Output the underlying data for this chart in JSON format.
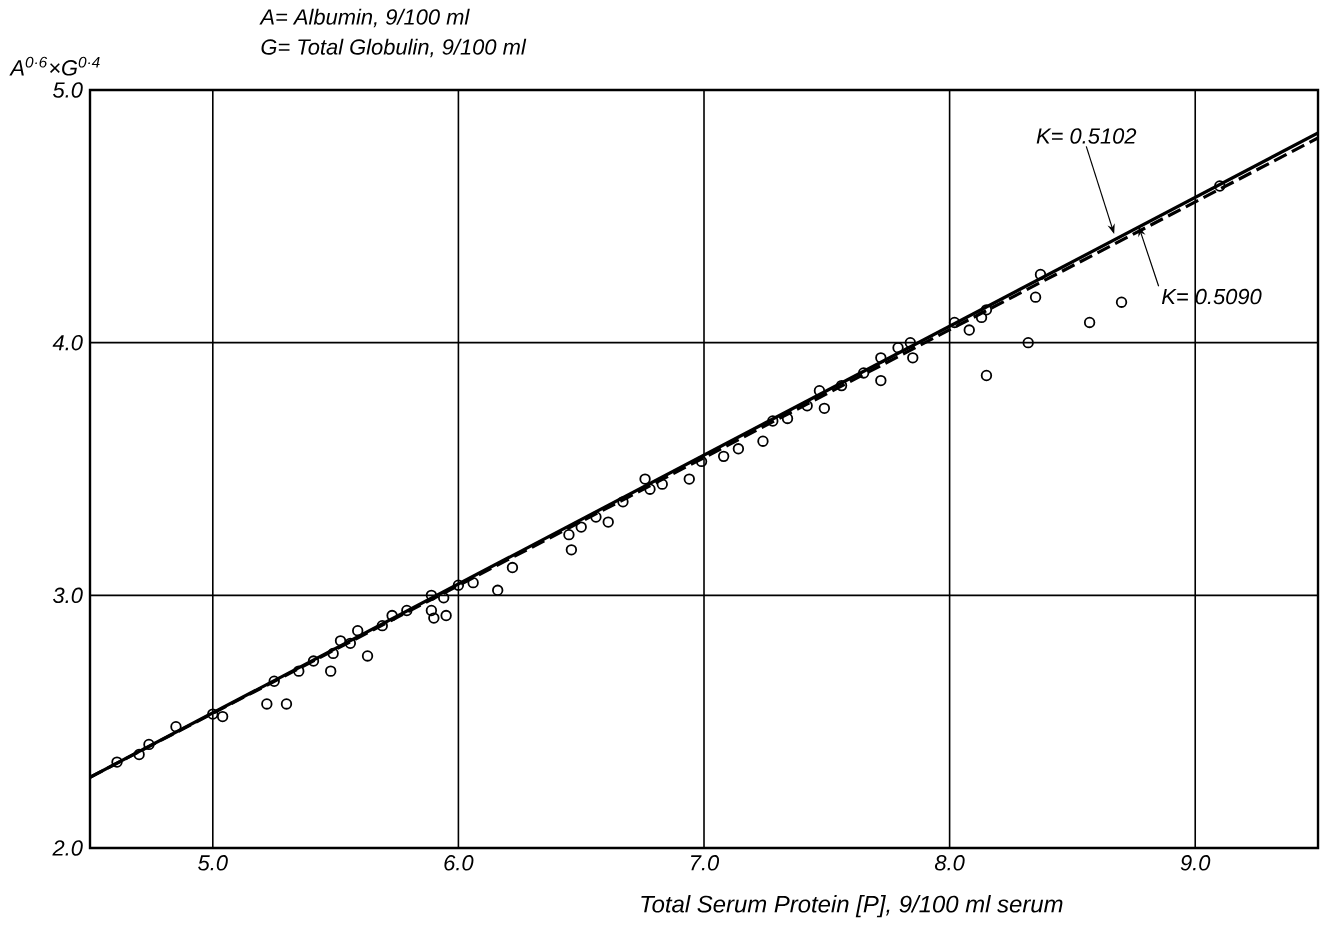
{
  "chart_data": {
    "type": "scatter",
    "xlabel": "Total  Serum Protein [P], 9/100 ml  serum",
    "ylabel": "A$^{0·6}$×G$^{0·4}$",
    "xlim": [
      4.5,
      9.5
    ],
    "ylim": [
      2.0,
      5.0
    ],
    "xticks": [
      {
        "value": 5,
        "label": "5.0"
      },
      {
        "value": 6,
        "label": "6.0"
      },
      {
        "value": 7,
        "label": "7.0"
      },
      {
        "value": 8,
        "label": "8.0"
      },
      {
        "value": 9,
        "label": "9.0"
      }
    ],
    "yticks": [
      {
        "value": 2,
        "label": "2.0"
      },
      {
        "value": 3,
        "label": "3.0"
      },
      {
        "value": 4,
        "label": "4.0"
      },
      {
        "value": 5,
        "label": "5.0"
      }
    ],
    "grid": true,
    "series": [
      {
        "marker": "circle",
        "color": "#000000",
        "x": [
          4.61,
          4.7,
          4.74,
          4.85,
          5.0,
          5.04,
          5.22,
          5.3,
          5.25,
          5.35,
          5.41,
          5.48,
          5.49,
          5.52,
          5.56,
          5.59,
          5.63,
          5.69,
          5.73,
          5.79,
          5.89,
          5.89,
          5.9,
          5.95,
          5.94,
          6.0,
          6.06,
          6.16,
          6.22,
          6.46,
          6.45,
          6.5,
          6.61,
          6.56,
          6.67,
          6.76,
          6.78,
          6.83,
          6.94,
          6.99,
          7.08,
          7.14,
          7.24,
          7.28,
          7.34,
          7.42,
          7.49,
          7.47,
          7.56,
          7.65,
          7.72,
          7.72,
          7.79,
          7.85,
          7.84,
          8.02,
          8.08,
          8.15,
          8.13,
          8.15,
          8.32,
          8.35,
          8.37,
          8.57,
          8.7,
          9.1
        ],
        "values": [
          2.34,
          2.37,
          2.41,
          2.48,
          2.53,
          2.52,
          2.57,
          2.57,
          2.66,
          2.7,
          2.74,
          2.7,
          2.77,
          2.82,
          2.81,
          2.86,
          2.76,
          2.88,
          2.92,
          2.94,
          3.0,
          2.94,
          2.91,
          2.92,
          2.99,
          3.04,
          3.05,
          3.02,
          3.11,
          3.18,
          3.24,
          3.27,
          3.29,
          3.31,
          3.37,
          3.46,
          3.42,
          3.44,
          3.46,
          3.53,
          3.55,
          3.58,
          3.61,
          3.69,
          3.7,
          3.75,
          3.74,
          3.81,
          3.83,
          3.88,
          3.85,
          3.94,
          3.98,
          3.94,
          4.0,
          4.08,
          4.05,
          3.87,
          4.1,
          4.13,
          4.0,
          4.18,
          4.27,
          4.08,
          4.16,
          4.62
        ]
      },
      {
        "type": "line",
        "marker": "none",
        "line_style": "solid",
        "color": "#000000",
        "x": [
          4.5,
          9.5
        ],
        "values": [
          2.28,
          4.83
        ]
      },
      {
        "type": "line",
        "marker": "none",
        "line_style": "dashed",
        "color": "#000000",
        "x": [
          4.5,
          9.5
        ],
        "values": [
          2.28,
          4.81
        ]
      }
    ],
    "annotations": [
      "A= Albumin, 9/100 ml",
      "G= Total Globulin, 9/100 ml",
      {
        "text": "K= 0.5102",
        "x": 8.67,
        "y": 4.43
      },
      {
        "text": "K= 0.5090",
        "x": 8.77,
        "y": 4.46
      }
    ]
  }
}
